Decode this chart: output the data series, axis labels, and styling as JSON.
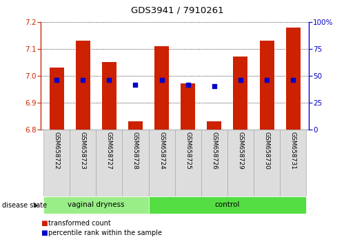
{
  "title": "GDS3941 / 7910261",
  "samples": [
    "GSM658722",
    "GSM658723",
    "GSM658727",
    "GSM658728",
    "GSM658724",
    "GSM658725",
    "GSM658726",
    "GSM658729",
    "GSM658730",
    "GSM658731"
  ],
  "groups": {
    "vaginal dryness": [
      0,
      1,
      2,
      3
    ],
    "control": [
      4,
      5,
      6,
      7,
      8,
      9
    ]
  },
  "red_values": [
    7.03,
    7.13,
    7.05,
    6.83,
    7.11,
    6.97,
    6.83,
    7.07,
    7.13,
    7.18
  ],
  "blue_values_y": [
    6.985,
    6.983,
    6.983,
    6.965,
    6.985,
    6.965,
    6.96,
    6.983,
    6.983,
    6.983
  ],
  "ylim_left": [
    6.8,
    7.2
  ],
  "ylim_right": [
    0,
    100
  ],
  "yticks_left": [
    6.8,
    6.9,
    7.0,
    7.1,
    7.2
  ],
  "yticks_right": [
    0,
    25,
    50,
    75,
    100
  ],
  "bar_color": "#cc2200",
  "dot_color": "#0000cc",
  "bar_bottom": 6.8,
  "group_colors": {
    "vaginal dryness": "#99ee88",
    "control": "#55dd44"
  },
  "legend_labels": [
    "transformed count",
    "percentile rank within the sample"
  ],
  "label_bg": "#dddddd",
  "label_edge": "#aaaaaa"
}
